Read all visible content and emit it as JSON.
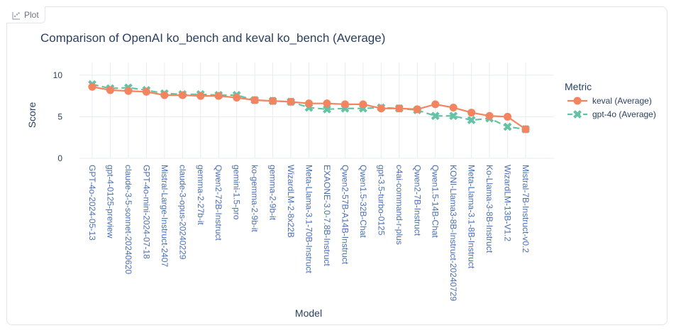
{
  "panel": {
    "tab_label": "Plot",
    "tab_icon": "scatter-plot-icon"
  },
  "chart_data": {
    "type": "line",
    "title": "Comparison of OpenAI ko_bench and keval ko_bench (Average)",
    "xlabel": "Model",
    "ylabel": "Score",
    "ylim": [
      0,
      10.5
    ],
    "yticks": [
      0,
      5,
      10
    ],
    "grid": true,
    "legend_title": "Metric",
    "legend_position": "right",
    "categories": [
      "GPT-4o-2024-05-13",
      "gpt-4-0125-preview",
      "claude-3-5-sonnet-20240620",
      "GPT-4o-mini-2024-07-18",
      "Mistral-Large-Instruct-2407",
      "claude-3-opus-20240229",
      "gemma-2-27b-it",
      "Qwen2-72B-Instruct",
      "gemini-1.5-pro",
      "ko-gemma-2-9b-it",
      "gemma-2-9b-it",
      "WizardLM-2-8x22B",
      "Meta-Llama-3.1-70B-Instruct",
      "EXAONE-3.0-7.8B-Instruct",
      "Qwen2-57B-A14B-Instruct",
      "Qwen1.5-32B-Chat",
      "gpt-3.5-turbo-0125",
      "c4ai-command-r-plus",
      "Qwen2-7B-Instruct",
      "Qwen1.5-14B-Chat",
      "KONI-Llama3-8B-Instruct-20240729",
      "Meta-Llama-3.1-8B-Instruct",
      "Ko-Llama-3-8B-Instruct",
      "WizardLM-13B-V1.2",
      "Mistral-7B-Instruct-v0.2"
    ],
    "series": [
      {
        "name": "keval (Average)",
        "color": "#f4845f",
        "marker": "circle",
        "dash": "solid",
        "values": [
          8.6,
          8.2,
          8.1,
          8.0,
          7.6,
          7.6,
          7.5,
          7.5,
          7.3,
          7.0,
          6.9,
          6.8,
          6.6,
          6.6,
          6.5,
          6.5,
          6.0,
          6.0,
          5.9,
          6.5,
          6.1,
          5.5,
          5.1,
          5.0,
          3.5
        ]
      },
      {
        "name": "gpt-4o (Average)",
        "color": "#66c2a5",
        "marker": "x",
        "dash": "dash",
        "values": [
          8.9,
          8.4,
          8.5,
          8.2,
          7.8,
          7.7,
          7.7,
          7.6,
          7.6,
          7.0,
          6.9,
          6.8,
          6.1,
          5.9,
          6.0,
          6.0,
          6.1,
          6.0,
          5.8,
          5.1,
          5.1,
          4.6,
          4.8,
          3.8,
          3.5
        ]
      }
    ]
  }
}
